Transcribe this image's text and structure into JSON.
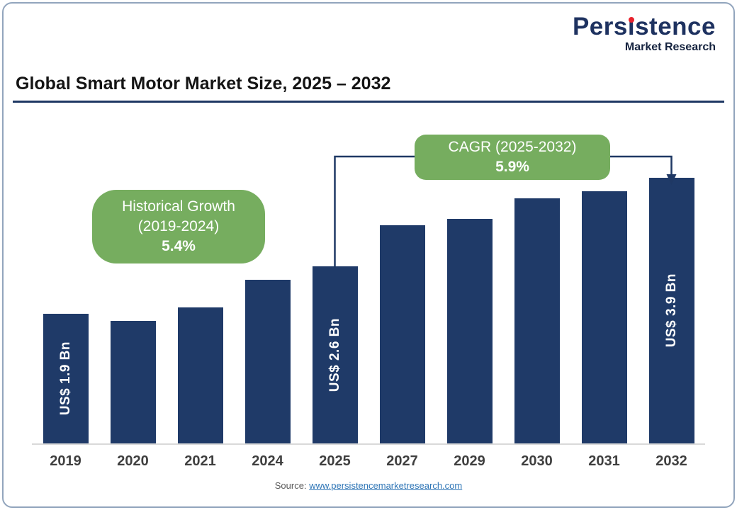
{
  "header": {
    "logo": {
      "wordmark": "Persistence",
      "tagline": "Market Research"
    },
    "title": "Global Smart Motor Market Size, 2025 – 2032"
  },
  "annotations": {
    "historical": {
      "line1": "Historical Growth",
      "line2": "(2019-2024)",
      "value": "5.4%"
    },
    "cagr": {
      "line1": "CAGR (2025-2032)",
      "value": "5.9%"
    }
  },
  "footer": {
    "source_label": "Source:",
    "source_link": "www.persistencemarketresearch.com"
  },
  "colors": {
    "bar": "#1f3a68",
    "callout_green": "#76ad5f",
    "logo_navy": "#1e3260",
    "accent_red": "#e8222d",
    "title_rule": "#1f3864",
    "axis_gray": "#d9d9d9",
    "connector": "#1f3864",
    "link_blue": "#2e75b6"
  },
  "chart_data": {
    "type": "bar",
    "title": "Global Smart Motor Market Size, 2025 – 2032",
    "unit": "US$ Bn",
    "categories": [
      "2019",
      "2020",
      "2021",
      "2024",
      "2025",
      "2027",
      "2029",
      "2030",
      "2031",
      "2032"
    ],
    "values_usd_bn": [
      1.9,
      1.8,
      2.0,
      2.4,
      2.6,
      3.2,
      3.3,
      3.6,
      3.7,
      3.9
    ],
    "bar_labels": [
      "US$ 1.9 Bn",
      "",
      "",
      "",
      "US$ 2.6 Bn",
      "",
      "",
      "",
      "",
      "US$ 3.9 Bn"
    ],
    "ylim": [
      0,
      3.9
    ],
    "gridlines": false,
    "legend": false,
    "historical_growth_2019_2024": "5.4%",
    "cagr_2025_2032": "5.9%"
  }
}
